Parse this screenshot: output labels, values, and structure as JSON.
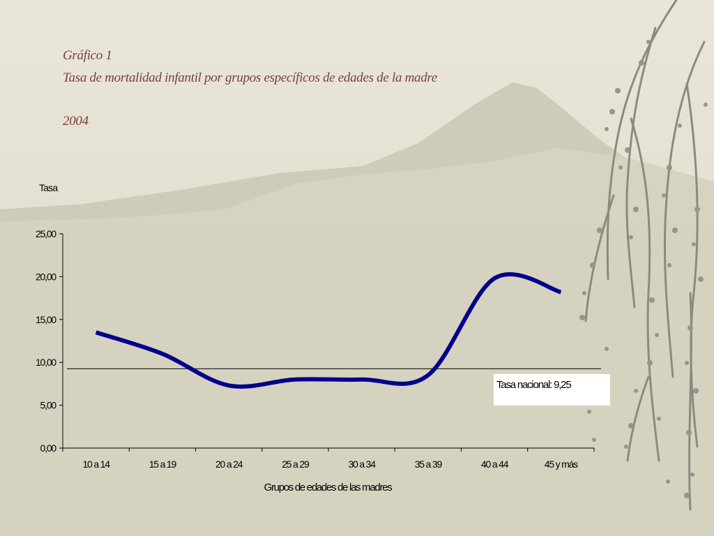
{
  "slide": {
    "label": "Gráfico 1",
    "title": "Tasa de mortalidad infantil por grupos específicos de edades de la madre",
    "year": "2004"
  },
  "colors": {
    "line": "#00008b",
    "title": "#7a3f38",
    "reference": "#000000"
  },
  "chart_data": {
    "type": "line",
    "ylabel": "Tasa",
    "xlabel": "Grupos de edades de las madres",
    "categories": [
      "10 a 14",
      "15 a 19",
      "20 a 24",
      "25 a 29",
      "30 a 34",
      "35 a 39",
      "40 a 44",
      "45 y más"
    ],
    "series": [
      {
        "values": [
          13.5,
          11,
          7.3,
          8,
          8,
          8.5,
          19.8,
          18.2
        ]
      }
    ],
    "yticks": [
      "0,00",
      "5,00",
      "10,00",
      "15,00",
      "20,00",
      "25,00"
    ],
    "ylim": [
      0,
      25
    ],
    "smooth": true,
    "reference_line": {
      "value": 9.25,
      "label": "Tasa nacional: 9,25"
    },
    "grid": false,
    "legend": "none"
  }
}
